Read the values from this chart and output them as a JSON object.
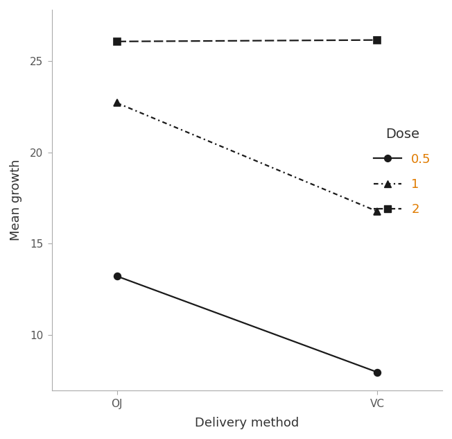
{
  "x_labels": [
    "OJ",
    "VC"
  ],
  "x_positions": [
    0,
    1
  ],
  "series": [
    {
      "label": "0.5",
      "values": [
        13.23,
        7.98
      ],
      "linestyle": "solid",
      "marker": "o",
      "color": "#1a1a1a",
      "dashes": []
    },
    {
      "label": "1",
      "values": [
        22.7,
        16.77
      ],
      "linestyle": "dashed",
      "marker": "^",
      "color": "#1a1a1a",
      "dashes": [
        3,
        2,
        1,
        2
      ]
    },
    {
      "label": "2",
      "values": [
        26.06,
        26.14
      ],
      "linestyle": "dashed",
      "marker": "s",
      "color": "#1a1a1a",
      "dashes": [
        6,
        2
      ]
    }
  ],
  "xlabel": "Delivery method",
  "ylabel": "Mean growth",
  "legend_title": "Dose",
  "legend_label_color": "#E07B00",
  "ylim": [
    7.0,
    27.8
  ],
  "yticks": [
    10,
    15,
    20,
    25
  ],
  "background_color": "#ffffff",
  "linewidth": 1.6,
  "markersize": 7,
  "label_fontsize": 13,
  "tick_fontsize": 11,
  "legend_fontsize": 13
}
